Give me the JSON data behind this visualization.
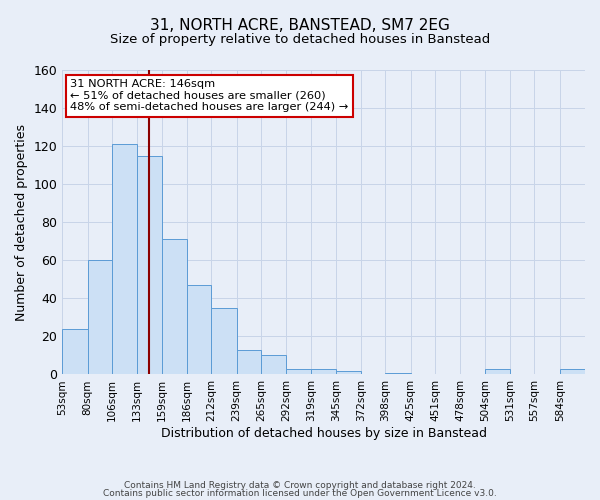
{
  "title": "31, NORTH ACRE, BANSTEAD, SM7 2EG",
  "subtitle": "Size of property relative to detached houses in Banstead",
  "xlabel": "Distribution of detached houses by size in Banstead",
  "ylabel": "Number of detached properties",
  "bin_labels": [
    "53sqm",
    "80sqm",
    "106sqm",
    "133sqm",
    "159sqm",
    "186sqm",
    "212sqm",
    "239sqm",
    "265sqm",
    "292sqm",
    "319sqm",
    "345sqm",
    "372sqm",
    "398sqm",
    "425sqm",
    "451sqm",
    "478sqm",
    "504sqm",
    "531sqm",
    "557sqm",
    "584sqm"
  ],
  "bin_edges": [
    53,
    80,
    106,
    133,
    159,
    186,
    212,
    239,
    265,
    292,
    319,
    345,
    372,
    398,
    425,
    451,
    478,
    504,
    531,
    557,
    584,
    611
  ],
  "bar_heights": [
    24,
    60,
    121,
    115,
    71,
    47,
    35,
    13,
    10,
    3,
    3,
    2,
    0,
    1,
    0,
    0,
    0,
    3,
    0,
    0,
    3
  ],
  "bar_fill": "#cce0f5",
  "bar_edge": "#5b9bd5",
  "property_line_x": 146,
  "property_line_color": "#8b0000",
  "annotation_text": "31 NORTH ACRE: 146sqm\n← 51% of detached houses are smaller (260)\n48% of semi-detached houses are larger (244) →",
  "annotation_box_edge": "#cc0000",
  "annotation_box_fill": "white",
  "ylim": [
    0,
    160
  ],
  "yticks": [
    0,
    20,
    40,
    60,
    80,
    100,
    120,
    140,
    160
  ],
  "grid_color": "#c8d4e8",
  "background_color": "#e8eef8",
  "footer_line1": "Contains HM Land Registry data © Crown copyright and database right 2024.",
  "footer_line2": "Contains public sector information licensed under the Open Government Licence v3.0.",
  "title_fontsize": 11,
  "subtitle_fontsize": 9.5,
  "tick_fontsize": 7.5,
  "ylabel_fontsize": 9,
  "xlabel_fontsize": 9
}
